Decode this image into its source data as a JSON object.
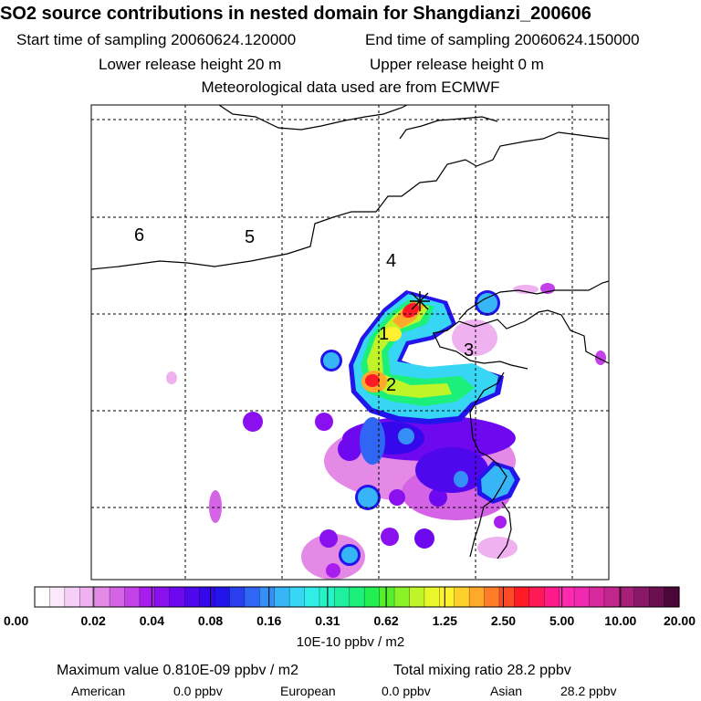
{
  "header": {
    "title": "SO2 source contributions in nested domain for Shangdianzi_200606",
    "start_time": "Start time of sampling 20060624.120000",
    "end_time": "End time of sampling 20060624.150000",
    "lower_release": "Lower release height   20 m",
    "upper_release": "Upper release height    0 m",
    "met_source": "Meteorological data used are from ECMWF"
  },
  "chart_data": {
    "type": "heatmap",
    "title": "SO2 source contributions in nested domain for Shangdianzi_200606",
    "region_labels": [
      "1",
      "2",
      "3",
      "4",
      "5",
      "6"
    ],
    "receptor_marker": "+",
    "grid": true,
    "colorbar": {
      "ticks": [
        "0.00",
        "0.02",
        "0.04",
        "0.08",
        "0.16",
        "0.31",
        "0.62",
        "1.25",
        "2.50",
        "5.00",
        "10.00",
        "20.00"
      ],
      "unit": "10E-10 ppbv / m2",
      "colors": [
        "#ffffff",
        "#fbe8fb",
        "#f6cff6",
        "#efb1ef",
        "#e489e6",
        "#d563e5",
        "#c241e8",
        "#a81eee",
        "#8b10f0",
        "#6e08ef",
        "#4f08ee",
        "#3408ea",
        "#2414ec",
        "#2a40f0",
        "#3066f4",
        "#3490f6",
        "#37b6f7",
        "#37d6f4",
        "#30eee5",
        "#26f2c6",
        "#1ef0a0",
        "#1cf07a",
        "#22f050",
        "#54f030",
        "#8af228",
        "#bef428",
        "#e8f62c",
        "#fff030",
        "#ffd02c",
        "#ffa82a",
        "#ff7c28",
        "#ff4a26",
        "#ff1a26",
        "#fe1a56",
        "#ff1a8a",
        "#ff2ab0",
        "#f02ab0",
        "#d82a9e",
        "#c0268c",
        "#a6207a",
        "#8a1868",
        "#6a1050",
        "#4a0838"
      ]
    }
  },
  "footer": {
    "max_value": "Maximum value  0.810E-09 ppbv / m2",
    "total_ratio": "Total mixing ratio      28.2 ppbv",
    "american_label": "American",
    "american_value": "0.0 ppbv",
    "european_label": "European",
    "european_value": "0.0 ppbv",
    "asian_label": "Asian",
    "asian_value": "28.2 ppbv"
  }
}
